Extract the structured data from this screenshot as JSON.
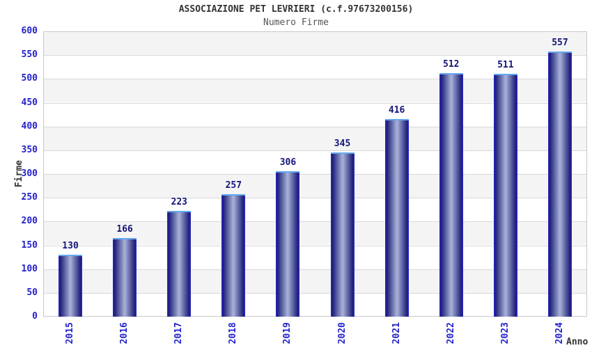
{
  "chart_data": {
    "type": "bar",
    "title": "ASSOCIAZIONE PET LEVRIERI (c.f.97673200156)",
    "subtitle": "Numero Firme",
    "categories": [
      "2015",
      "2016",
      "2017",
      "2018",
      "2019",
      "2020",
      "2021",
      "2022",
      "2023",
      "2024"
    ],
    "values": [
      130,
      166,
      223,
      257,
      306,
      345,
      416,
      512,
      511,
      557
    ],
    "xlabel": "Anno",
    "ylabel": "Firme",
    "ylim": [
      0,
      600
    ],
    "ytick_step": 50,
    "grid": true,
    "legend_position": "none",
    "bands": "alternating horizontal stripes every 50 units"
  },
  "colors": {
    "background": "#ffffff",
    "title": "#333333",
    "subtitle": "#555555",
    "tick_label": "#2222cc",
    "value_label": "#14147a",
    "axis_title": "#333333",
    "grid_line": "#d8d8d8",
    "band_gray": "#f4f4f4",
    "band_white": "#ffffff",
    "plot_border": "#c9c9c9",
    "bar_edge": "#2929d4",
    "bar_dark": "#1e1e78",
    "bar_light": "#a9b3d8",
    "bar_cap": "#63a8f0"
  }
}
